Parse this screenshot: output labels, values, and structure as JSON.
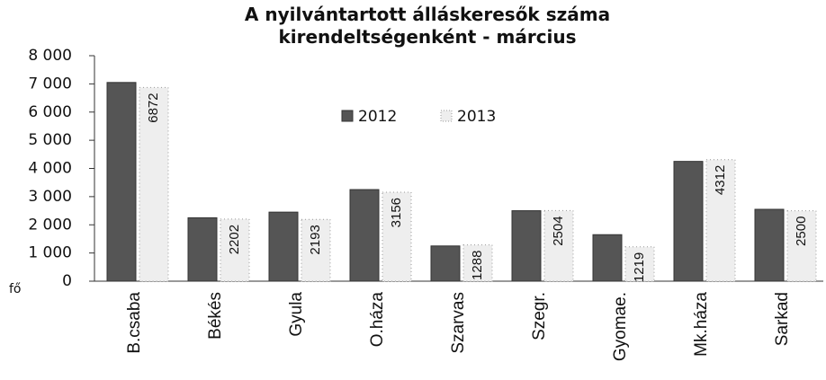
{
  "chart_data": {
    "type": "bar",
    "title": "A nyilvántartott álláskeresők száma kirendeltségenként - március",
    "ylabel": "fő",
    "categories": [
      "B.csaba",
      "Békés",
      "Gyula",
      "O.háza",
      "Szarvas",
      "Szegr.",
      "Gyomae.",
      "Mk.háza",
      "Sarkad"
    ],
    "series": [
      {
        "name": "2012",
        "color": "#555555",
        "values": [
          7050,
          2250,
          2450,
          3250,
          1250,
          2500,
          1650,
          4250,
          2550
        ]
      },
      {
        "name": "2013",
        "color": "#eeeeee",
        "values": [
          6872,
          2202,
          2193,
          3156,
          1288,
          2504,
          1219,
          4312,
          2500
        ]
      }
    ],
    "ylim": [
      0,
      8000
    ],
    "yticks": [
      {
        "value": 0,
        "label": "0"
      },
      {
        "value": 1000,
        "label": "1 000"
      },
      {
        "value": 2000,
        "label": "2 000"
      },
      {
        "value": 3000,
        "label": "3 000"
      },
      {
        "value": 4000,
        "label": "4 000"
      },
      {
        "value": 5000,
        "label": "5 000"
      },
      {
        "value": 6000,
        "label": "6 000"
      },
      {
        "value": 7000,
        "label": "7 000"
      },
      {
        "value": 8000,
        "label": "8 000"
      }
    ],
    "grid": false
  }
}
